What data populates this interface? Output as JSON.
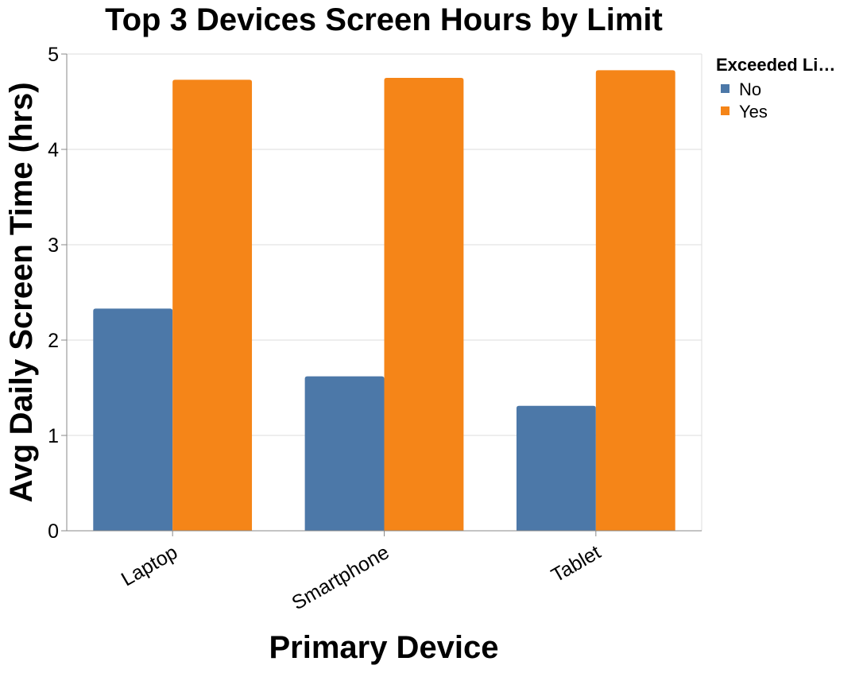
{
  "chart_data": {
    "type": "bar",
    "title": "Top 3 Devices Screen Hours by Limit",
    "xlabel": "Primary Device",
    "ylabel": "Avg Daily Screen Time (hrs)",
    "categories": [
      "Laptop",
      "Smartphone",
      "Tablet"
    ],
    "series": [
      {
        "name": "No",
        "color": "#4c78a8",
        "values": [
          2.33,
          1.62,
          1.31
        ]
      },
      {
        "name": "Yes",
        "color": "#f58518",
        "values": [
          4.73,
          4.75,
          4.83
        ]
      }
    ],
    "ylim": [
      0,
      5
    ],
    "yticks": [
      "0",
      "1",
      "2",
      "3",
      "4",
      "5"
    ],
    "grid": true,
    "legend": {
      "title": "Exceeded Li…",
      "placement": "top-right"
    }
  }
}
